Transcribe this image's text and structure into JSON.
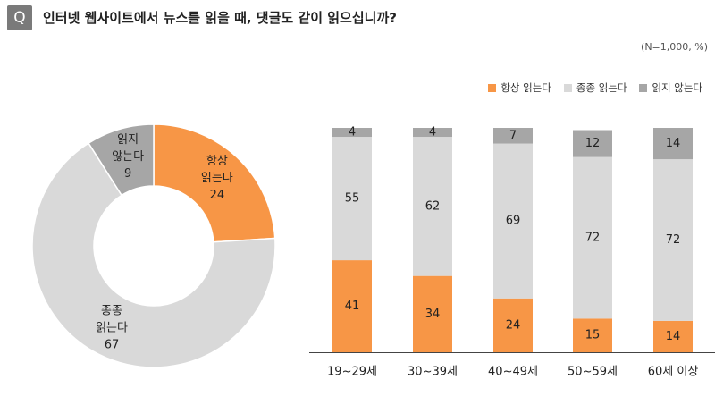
{
  "header": {
    "badge": "Q",
    "question": "인터넷 웹사이트에서 뉴스를 읽을 때, 댓글도 같이 읽으십니까?",
    "note": "(N=1,000, %)"
  },
  "colors": {
    "always": "#f79646",
    "sometimes": "#d9d9d9",
    "never": "#a6a6a6"
  },
  "legend": [
    {
      "label": "항상 읽는다",
      "color": "#f79646"
    },
    {
      "label": "종종 읽는다",
      "color": "#d9d9d9"
    },
    {
      "label": "읽지 않는다",
      "color": "#a6a6a6"
    }
  ],
  "chart_data": [
    {
      "type": "pie",
      "donut": true,
      "slices": [
        {
          "label_lines": [
            "항상",
            "읽는다"
          ],
          "value": 24,
          "color": "#f79646"
        },
        {
          "label_lines": [
            "종종",
            "읽는다"
          ],
          "value": 67,
          "color": "#d9d9d9"
        },
        {
          "label_lines": [
            "읽지",
            "않는다"
          ],
          "value": 9,
          "color": "#a6a6a6"
        }
      ]
    },
    {
      "type": "bar",
      "stacked": true,
      "categories": [
        "19~29세",
        "30~39세",
        "40~49세",
        "50~59세",
        "60세 이상"
      ],
      "series": [
        {
          "name": "항상 읽는다",
          "values": [
            41,
            34,
            24,
            15,
            14
          ],
          "color": "#f79646"
        },
        {
          "name": "종종 읽는다",
          "values": [
            55,
            62,
            69,
            72,
            72
          ],
          "color": "#d9d9d9"
        },
        {
          "name": "읽지 않는다",
          "values": [
            4,
            4,
            7,
            12,
            14
          ],
          "color": "#a6a6a6"
        }
      ],
      "ylim": [
        0,
        100
      ]
    }
  ]
}
